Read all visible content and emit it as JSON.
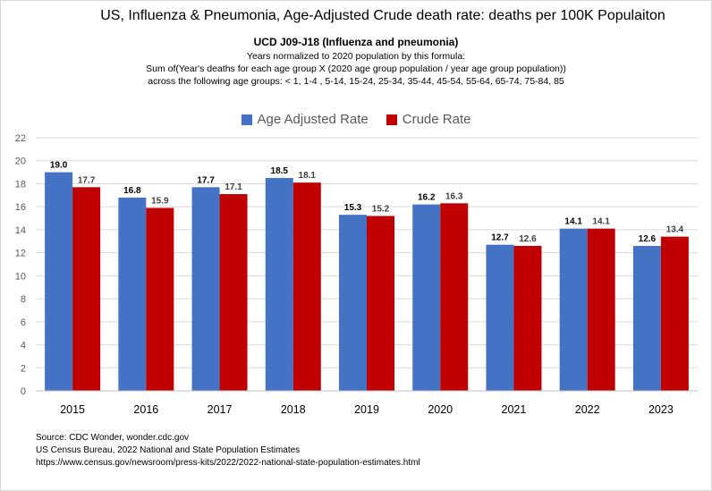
{
  "chart_data": {
    "type": "bar",
    "title": "US, Influenza & Pneumonia, Age-Adjusted Crude death rate: deaths per 100K Populaiton",
    "subtitle": "UCD J09-J18 (Influenza and pneumonia)",
    "description_lines": [
      "Years normalized to 2020 population by this formula:",
      "Sum of(Year's deaths for each age group X (2020 age group population / year age group population))",
      "across the following age groups: < 1, 1-4 , 5-14, 15-24, 25-34, 35-44, 45-54, 55-64, 65-74, 75-84, 85"
    ],
    "categories": [
      "2015",
      "2016",
      "2017",
      "2018",
      "2019",
      "2020",
      "2021",
      "2022",
      "2023"
    ],
    "series": [
      {
        "name": "Age Adjusted Rate",
        "color": "#4472c4",
        "values": [
          19.0,
          16.8,
          17.7,
          18.5,
          15.3,
          16.2,
          12.7,
          14.1,
          12.6
        ]
      },
      {
        "name": "Crude Rate",
        "color": "#c00000",
        "values": [
          17.7,
          15.9,
          17.1,
          18.1,
          15.2,
          16.3,
          12.6,
          14.1,
          13.4
        ]
      }
    ],
    "ylim": [
      0,
      22
    ],
    "yticks": [
      "0",
      "2",
      "4",
      "6",
      "8",
      "10",
      "12",
      "14",
      "16",
      "18",
      "20",
      "22"
    ],
    "grid": true,
    "legend": "top-center"
  },
  "sources": [
    "Source: CDC Wonder, wonder.cdc.gov",
    "US Census Bureau, 2022 National and State Population Estimates",
    "https://www.census.gov/newsroom/press-kits/2022/2022-national-state-population-estimates.html"
  ]
}
